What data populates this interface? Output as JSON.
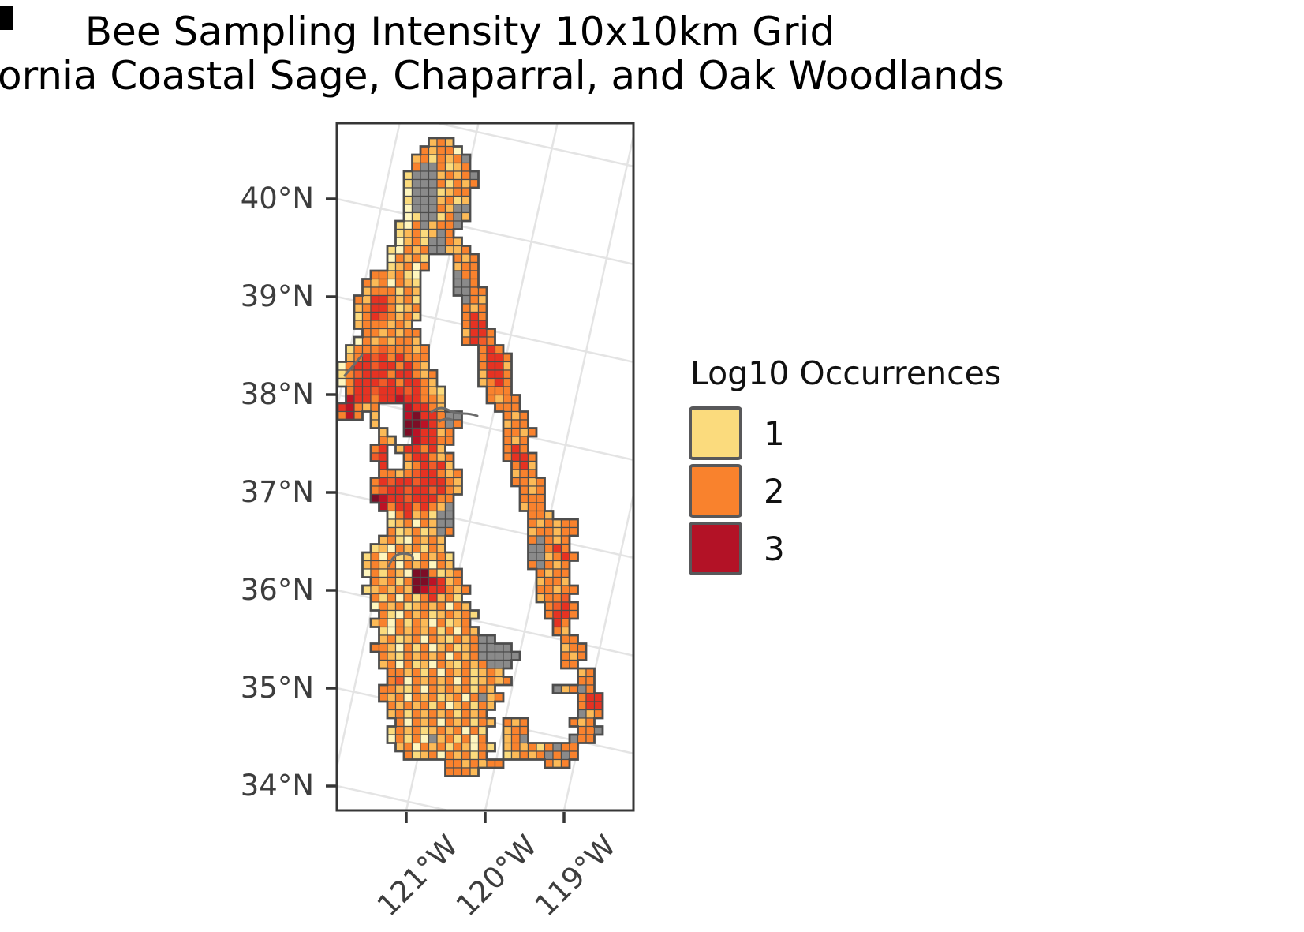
{
  "title": "Bee Sampling Intensity 10x10km Grid",
  "subtitle_visible": "ornia Coastal Sage, Chaparral, and Oak Woodlands",
  "chart_data": {
    "type": "heatmap",
    "title": "Bee Sampling Intensity 10x10km Grid",
    "subtitle_visible": "ornia Coastal Sage, Chaparral, and Oak Woodlands",
    "legend": {
      "title": "Log10 Occurrences",
      "position": "right",
      "entries": [
        {
          "label": "1",
          "color": "#fbdb7d"
        },
        {
          "label": "2",
          "color": "#f9822d"
        },
        {
          "label": "3",
          "color": "#b31226"
        }
      ]
    },
    "x_ticks": [
      "121°W",
      "120°W",
      "119°W"
    ],
    "y_ticks": [
      "40°N",
      "39°N",
      "38°N",
      "37°N",
      "36°N",
      "35°N",
      "34°N"
    ],
    "x_axis_range_deg_w": [
      122.2,
      118.4
    ],
    "y_axis_range_deg_n": [
      33.9,
      41.0
    ],
    "graticule": {
      "on": true,
      "slope": 0.22,
      "parallels_left_y": [
        -28,
        96,
        220,
        344,
        468,
        592,
        716,
        840
      ],
      "meridians_bottom_x": [
        -112,
        -12,
        88,
        188,
        288
      ]
    },
    "y_tick_pos": [
      96,
      220,
      344,
      468,
      592,
      716,
      840
    ],
    "x_tick_pos": [
      88,
      188,
      288
    ],
    "grid": {
      "cell_km": 10,
      "cols": 32,
      "rows": 77,
      "na_color": "#8a8a8a",
      "cell_border_color": "#4d4d4d",
      "region_outline_color": "#4d4d4d",
      "palette": {
        "a": "#fff6be",
        "b": "#fbdb7d",
        "c": "#fcba57",
        "d": "#f9822d",
        "e": "#f15b28",
        "f": "#e63222",
        "g": "#bb1226",
        "h": "#7d0d26",
        "N": "#8a8a8a"
      },
      "value_map": {
        "a": 1.0,
        "b": 1.25,
        "c": 1.6,
        "d": 2.0,
        "e": 2.4,
        "f": 2.7,
        "g": 3.0,
        "h": 3.4,
        "N": "NA"
      },
      "rows_encoded": [
        "...........cdc..................",
        "..........dcdda.................",
        ".........cdbdcdN................",
        ".........dNNdbcd................",
        "........bNNNcdcdN...............",
        "........bNNNdbdcd...............",
        "........aNNNbcdd................",
        "........bNNNcdbc................",
        "........aNNNdcNN................",
        "........abNNbdNc................",
        ".......badNcddN.................",
        ".......bcdbcNd..................",
        ".......acdbNNdc.................",
        "......badcdNNccd................",
        "......adcdb...dcd...............",
        "......bcdad...cdd...............",
        "....ddcdba....Ndd...............",
        "...dcdadcb....NNd...............",
        "...cdddbdc....NNdd..............",
        "..dcffdcdb.....Ndc..............",
        "..cdffdbcd.....dcd..............",
        "..bdfedcdb.....dfd..............",
        "..cdddcdc......dff..............",
        "...ddcdcdd.....cffd.............",
        "..adcdcddc.....dfed.............",
        ".bdddedddcd......dfd............",
        ".cdfefdfddd......dffd...........",
        "adffeffdfdc......dffc...........",
        "bdefffdffdcd.....cffd...........",
        "adfffefdffdc.....cdfd...........",
        ".dffefffefdcb.....ddd...........",
        ".gffdffgffddc.....dcdd..........",
        "fgdcd...gffdc......ddd..........",
        "dgd.c...ghffdNN.....dcd.........",
        "....c...hhgfdNd.....cdd.........",
        ".....c..hgffcd......ddcd........",
        ".....dc..gffdd......dcd.........",
        "....df.cffdfc.......dfd.........",
        "....ef..dffdcd......dffd........",
        ".....f..cdfefc.......dfc........",
        ".....ddcdeffdcd......cdd........",
        "....dfeffefffdc......ddcd.......",
        "....deffeffefdc.......dcd.......",
        "....hgffefffdd........ddd.......",
        ".....gdffdfdcN........cdd.......",
        "......adfcdbNN.........ddc......",
        "......bcdadcNN.........dcdcdd...",
        "......dbcdbcNd.........cddcdd...",
        ".....cdbadcdc..........dNdcd....",
        "....bcadcdbdc..........NNdfd....",
        "...bdadbcadcdb.........NNcdfd...",
        "...cdcdadcdadc.........dNdcd....",
        "...adbdcahhdbcd.........dcdd....",
        "....dcdbdhhgfcd.........cddc....",
        "...bcdcdchgffdcd........ddcdd...",
        "....dbdadbdfcdb.........cdde....",
        "....adcdbcdcdadc.........defd...",
        ".....dbadcdbcdcdb........dffd...",
        "....cdadbdcadbcd..........fd....",
        ".....badcdcdbdadc.........dc....",
        ".....cdbcdadcbdcdNN........dd...",
        "....ddcadbdacdbcdNNNN......cdd..",
        ".....dcbdcdcdadcdNNNNN.....dcd..",
        ".....cdadbcadcbdcdNNN......dd...",
        "......ddcdbdadcdbcdc.........cd.",
        "......deadcdcdadbcdcd........dd.",
        ".....ddcbdadcdcdbdc.......NcdNd.",
        ".....dcdadcdbcdadNcd.........dff",
        "......dcdcdbdacdbdc..........dff",
        "......cdbdcdcdbdcd...........Ncd",
        ".......dadcdadcdbdc.dcd.....dcd.",
        "......bdcdbcdcdadb..cdd......ddN",
        "......adbdaNcdbdad..cdN.....Ndd.",
        ".......cdadcdbdcadb.cdcdbdNdd...",
        "........dbcdadcdbd..bcdcdNdNd...",
        ".............ddcdcdd.....dcd....",
        ".............dddc..............."
      ]
    }
  }
}
